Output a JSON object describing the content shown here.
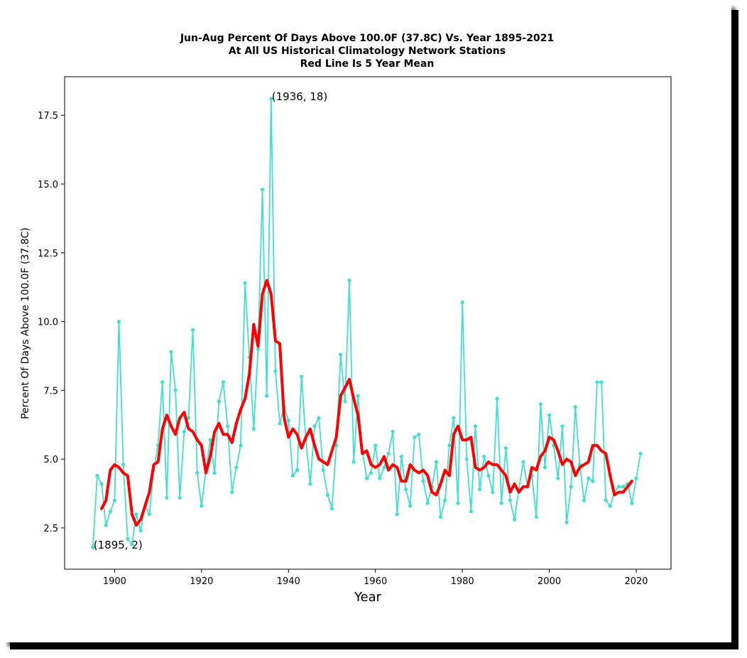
{
  "colors": {
    "raw_series": "#40e0d0",
    "mean_series": "#ff0000",
    "axes": "#000000",
    "background": "#ffffff"
  },
  "chart_data": {
    "type": "line",
    "title": [
      "Jun-Aug Percent Of Days Above 100.0F (37.8C) Vs. Year 1895-2021",
      "At All US Historical Climatology Network Stations",
      "Red Line Is 5 Year Mean"
    ],
    "xlabel": "Year",
    "ylabel": "Percent Of Days Above 100.0F (37.8C)",
    "xlim": [
      1888.5,
      2028
    ],
    "ylim": [
      1.0,
      18.9
    ],
    "x_ticks": [
      1900,
      1920,
      1940,
      1960,
      1980,
      2000,
      2020
    ],
    "y_ticks": [
      2.5,
      5.0,
      7.5,
      10.0,
      12.5,
      15.0,
      17.5
    ],
    "y_tick_labels": [
      "2.5",
      "5.0",
      "7.5",
      "10.0",
      "12.5",
      "15.0",
      "17.5"
    ],
    "grid": false,
    "annotations": [
      {
        "text": "(1936, 18)",
        "x": 1936,
        "y": 18.1
      },
      {
        "text": "(1895, 2)",
        "x": 1895,
        "y": 1.8
      }
    ],
    "series": [
      {
        "name": "Annual percent of days above 100.0F",
        "style": "line-with-markers",
        "x_start": 1895,
        "values": [
          1.8,
          4.4,
          4.1,
          2.6,
          3.1,
          3.5,
          10.0,
          4.8,
          2.1,
          1.9,
          3.0,
          2.4,
          3.3,
          3.0,
          4.6,
          5.5,
          7.8,
          3.6,
          8.9,
          7.5,
          3.6,
          6.0,
          6.5,
          9.7,
          4.5,
          3.3,
          4.6,
          5.7,
          4.5,
          7.1,
          7.8,
          6.2,
          3.8,
          4.7,
          5.5,
          11.4,
          8.7,
          6.1,
          9.0,
          14.8,
          7.3,
          18.1,
          8.2,
          6.3,
          6.9,
          6.4,
          4.4,
          4.6,
          8.0,
          5.7,
          4.1,
          6.2,
          6.5,
          4.6,
          3.7,
          3.2,
          5.5,
          8.8,
          7.1,
          11.5,
          4.9,
          7.3,
          5.3,
          4.3,
          4.5,
          5.5,
          4.3,
          4.7,
          5.2,
          6.0,
          3.0,
          5.1,
          3.9,
          3.3,
          5.8,
          5.9,
          4.2,
          3.4,
          4.0,
          4.9,
          2.9,
          3.5,
          5.5,
          6.5,
          3.4,
          10.7,
          5.0,
          3.1,
          6.2,
          3.9,
          5.1,
          4.4,
          3.8,
          7.2,
          3.4,
          5.4,
          3.5,
          2.8,
          3.9,
          4.9,
          4.0,
          4.4,
          2.9,
          7.0,
          4.7,
          6.6,
          5.5,
          4.3,
          6.2,
          2.7,
          4.0,
          6.9,
          4.8,
          3.5,
          4.3,
          4.2,
          7.8,
          7.8,
          3.5,
          3.3,
          3.8,
          4.0,
          4.0,
          4.1,
          3.4,
          4.3,
          5.2
        ]
      },
      {
        "name": "5 Year Mean",
        "style": "thick-line",
        "x_start": 1897,
        "values": [
          3.2,
          3.5,
          4.6,
          4.8,
          4.7,
          4.5,
          4.4,
          3.0,
          2.6,
          2.8,
          3.3,
          3.8,
          4.8,
          4.9,
          6.1,
          6.6,
          6.2,
          5.9,
          6.5,
          6.7,
          6.1,
          6.0,
          5.7,
          5.5,
          4.5,
          5.1,
          6.0,
          6.3,
          5.9,
          5.9,
          5.6,
          6.3,
          6.8,
          7.2,
          8.1,
          9.9,
          9.1,
          11.0,
          11.5,
          11.0,
          9.3,
          9.2,
          6.5,
          5.8,
          6.1,
          5.9,
          5.4,
          5.8,
          6.1,
          5.5,
          5.0,
          4.9,
          4.8,
          5.3,
          5.8,
          7.3,
          7.6,
          7.9,
          7.2,
          6.6,
          5.2,
          5.3,
          4.8,
          4.7,
          4.8,
          5.1,
          4.6,
          4.8,
          4.7,
          4.2,
          4.2,
          4.8,
          4.6,
          4.5,
          4.6,
          4.4,
          3.8,
          3.7,
          4.1,
          4.6,
          4.4,
          5.9,
          6.2,
          5.7,
          5.7,
          5.8,
          4.7,
          4.6,
          4.7,
          4.9,
          4.8,
          4.8,
          4.6,
          4.4,
          3.8,
          4.1,
          3.8,
          4.0,
          4.0,
          4.7,
          4.6,
          5.1,
          5.3,
          5.8,
          5.7,
          5.3,
          4.8,
          5.0,
          4.9,
          4.4,
          4.7,
          4.8,
          4.9,
          5.5,
          5.5,
          5.3,
          5.2,
          4.4,
          3.7,
          3.8,
          3.8,
          4.0,
          4.2
        ]
      }
    ]
  }
}
